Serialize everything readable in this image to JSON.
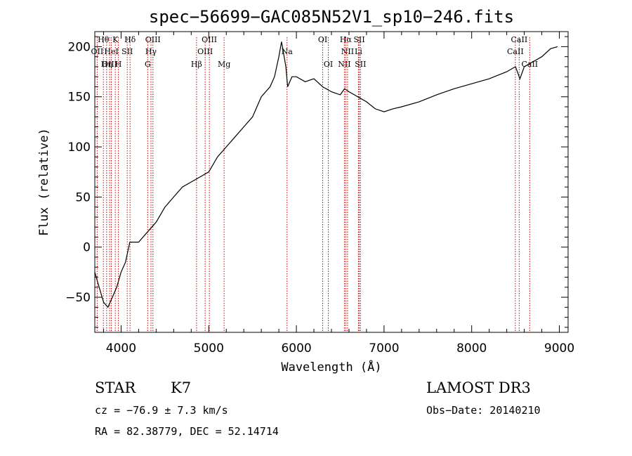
{
  "chart_data": {
    "type": "line",
    "title": "spec−56699−GAC085N52V1_sp10−246.fits",
    "xlabel": "Wavelength (Å)",
    "ylabel": "Flux (relative)",
    "xlim": [
      3700,
      9100
    ],
    "ylim": [
      -85,
      215
    ],
    "xticks": [
      4000,
      5000,
      6000,
      7000,
      8000,
      9000
    ],
    "yticks": [
      -50,
      0,
      50,
      100,
      150,
      200
    ],
    "ytick_labels": [
      "−50",
      "0",
      "50",
      "100",
      "150",
      "200"
    ],
    "series": [
      {
        "name": "spectrum",
        "color": "#000000",
        "x": [
          3700,
          3750,
          3800,
          3850,
          3900,
          3950,
          4000,
          4050,
          4100,
          4150,
          4200,
          4300,
          4400,
          4500,
          4600,
          4700,
          4800,
          4900,
          5000,
          5100,
          5200,
          5300,
          5400,
          5500,
          5600,
          5700,
          5750,
          5800,
          5830,
          5850,
          5880,
          5900,
          5950,
          6000,
          6100,
          6200,
          6300,
          6400,
          6500,
          6550,
          6600,
          6700,
          6800,
          6900,
          7000,
          7100,
          7200,
          7400,
          7600,
          7800,
          8000,
          8200,
          8400,
          8500,
          8550,
          8600,
          8700,
          8800,
          8900,
          8980
        ],
        "y": [
          -25,
          -40,
          -55,
          -60,
          -50,
          -40,
          -25,
          -15,
          5,
          5,
          5,
          15,
          25,
          40,
          50,
          60,
          65,
          70,
          75,
          90,
          100,
          110,
          120,
          130,
          150,
          160,
          170,
          190,
          205,
          195,
          180,
          160,
          170,
          170,
          165,
          168,
          160,
          155,
          152,
          158,
          155,
          150,
          145,
          138,
          135,
          138,
          140,
          145,
          152,
          158,
          163,
          168,
          175,
          180,
          168,
          180,
          185,
          190,
          198,
          200
        ]
      }
    ],
    "spectral_lines": [
      {
        "label": "Hθ",
        "wl": 3798,
        "row": 0
      },
      {
        "label": "K",
        "wl": 3934,
        "row": 0
      },
      {
        "label": "Hδ",
        "wl": 4102,
        "row": 0
      },
      {
        "label": "OIII",
        "wl": 4363,
        "row": 0
      },
      {
        "label": "OIII",
        "wl": 5007,
        "row": 0
      },
      {
        "label": "OI",
        "wl": 6300,
        "row": 0
      },
      {
        "label": "Hα",
        "wl": 6563,
        "row": 0
      },
      {
        "label": "SII",
        "wl": 6717,
        "row": 0
      },
      {
        "label": "CaII",
        "wl": 8542,
        "row": 0
      },
      {
        "label": "OII",
        "wl": 3727,
        "row": 1
      },
      {
        "label": "HeI",
        "wl": 3889,
        "row": 1
      },
      {
        "label": "SII",
        "wl": 4070,
        "row": 1
      },
      {
        "label": "Hγ",
        "wl": 4341,
        "row": 1
      },
      {
        "label": "OIII",
        "wl": 4959,
        "row": 1
      },
      {
        "label": "Na",
        "wl": 5893,
        "row": 1
      },
      {
        "label": "NII",
        "wl": 6584,
        "row": 1
      },
      {
        "label": "Li",
        "wl": 6708,
        "row": 1
      },
      {
        "label": "CaII",
        "wl": 8498,
        "row": 1
      },
      {
        "label": "OIII",
        "wl": 3869,
        "row": 2
      },
      {
        "label": "Hη",
        "wl": 3835,
        "row": 2
      },
      {
        "label": "H",
        "wl": 3969,
        "row": 2
      },
      {
        "label": "G",
        "wl": 4304,
        "row": 2
      },
      {
        "label": "Hβ",
        "wl": 4861,
        "row": 2
      },
      {
        "label": "Mg",
        "wl": 5175,
        "row": 2
      },
      {
        "label": "OI",
        "wl": 6364,
        "row": 2
      },
      {
        "label": "NII",
        "wl": 6548,
        "row": 2
      },
      {
        "label": "SII",
        "wl": 6731,
        "row": 2
      },
      {
        "label": "CaII",
        "wl": 8662,
        "row": 2
      }
    ]
  },
  "info": {
    "object_class": "STAR",
    "subclass": "K7",
    "survey": "LAMOST DR3",
    "velocity": "cz = −76.9 ± 7.3 km/s",
    "obs_date": "Obs−Date: 20140210",
    "coords": "RA =  82.38779, DEC =  52.14714"
  },
  "colors": {
    "line_marker": "#cc0000",
    "spectrum": "#000000"
  }
}
